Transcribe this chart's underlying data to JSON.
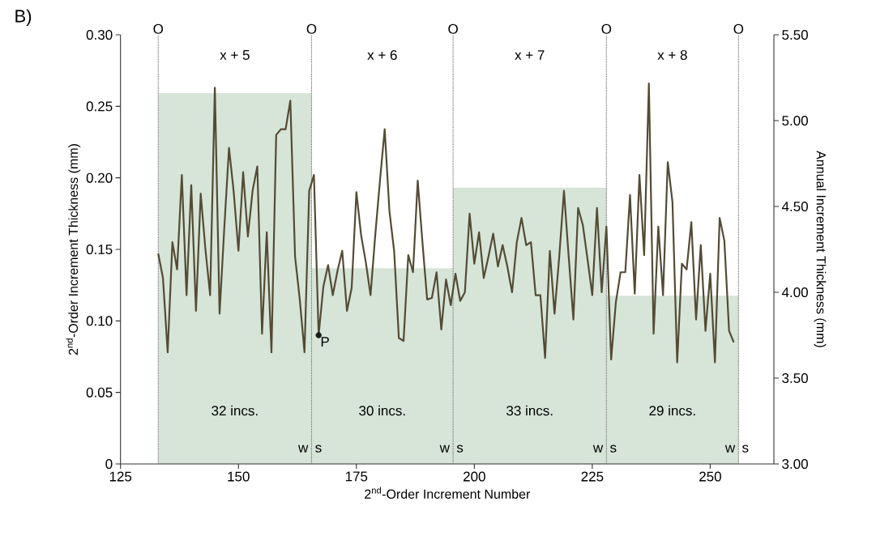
{
  "chart_data": {
    "type": "line",
    "xlabel": "2$^{nd}$-Order Increment Number",
    "ylabel": "2$^{nd}$-Order Increment Thickness (mm)",
    "y2label": "Annual Increment Thickness (mm)",
    "xlim": [
      125,
      263.5
    ],
    "xticks": [
      125,
      150,
      175,
      200,
      225,
      250
    ],
    "ylim": [
      0,
      0.3
    ],
    "yticks": [
      {
        "value": 0,
        "label": "0"
      },
      {
        "value": 0.05,
        "label": "0.05"
      },
      {
        "value": 0.1,
        "label": "0.10"
      },
      {
        "value": 0.15,
        "label": "0.15"
      },
      {
        "value": 0.2,
        "label": "0.20"
      },
      {
        "value": 0.25,
        "label": "0.25"
      },
      {
        "value": 0.3,
        "label": "0.30"
      }
    ],
    "y2lim": [
      3,
      5.5
    ],
    "y2ticks": [
      {
        "value": 3,
        "label": "3.00"
      },
      {
        "value": 3.5,
        "label": "3.50"
      },
      {
        "value": 4,
        "label": "4.00"
      },
      {
        "value": 4.5,
        "label": "4.50"
      },
      {
        "value": 5,
        "label": "5.00"
      },
      {
        "value": 5.5,
        "label": "5.50"
      }
    ],
    "series": [
      {
        "type": "bar",
        "axis": "y2",
        "color": "#d6e5d8",
        "x": [
          149.25,
          180.5,
          211.75,
          242
        ],
        "values": [
          5.16,
          4.14,
          4.61,
          3.98
        ]
      },
      {
        "color": "#544b35",
        "x": [
          133,
          134,
          135,
          136,
          137,
          138,
          139,
          140,
          141,
          142,
          143,
          144,
          145,
          146,
          147,
          148,
          149,
          150,
          151,
          152,
          153,
          154,
          155,
          156,
          157,
          158,
          159,
          160,
          161,
          162,
          163,
          164,
          165,
          166,
          167,
          168,
          169,
          170,
          171,
          172,
          173,
          174,
          175,
          176,
          177,
          178,
          179,
          180,
          181,
          182,
          183,
          184,
          185,
          186,
          187,
          188,
          189,
          190,
          191,
          192,
          193,
          194,
          195,
          196,
          197,
          198,
          199,
          200,
          201,
          202,
          203,
          204,
          205,
          206,
          207,
          208,
          209,
          210,
          211,
          212,
          213,
          214,
          215,
          216,
          217,
          218,
          219,
          220,
          221,
          222,
          223,
          224,
          225,
          226,
          227,
          228,
          229,
          230,
          231,
          232,
          233,
          234,
          235,
          236,
          237,
          238,
          239,
          240,
          241,
          242,
          243,
          244,
          245,
          246,
          247,
          248,
          249,
          250,
          251,
          252,
          253,
          254,
          255
        ],
        "values": [
          0.147,
          0.13,
          0.078,
          0.155,
          0.136,
          0.202,
          0.118,
          0.195,
          0.107,
          0.189,
          0.15,
          0.118,
          0.263,
          0.105,
          0.165,
          0.221,
          0.19,
          0.149,
          0.204,
          0.159,
          0.191,
          0.208,
          0.091,
          0.162,
          0.078,
          0.23,
          0.234,
          0.234,
          0.254,
          0.145,
          0.115,
          0.078,
          0.191,
          0.202,
          0.09,
          0.124,
          0.139,
          0.118,
          0.135,
          0.149,
          0.107,
          0.123,
          0.19,
          0.16,
          0.141,
          0.118,
          0.16,
          0.198,
          0.234,
          0.177,
          0.149,
          0.088,
          0.086,
          0.146,
          0.134,
          0.198,
          0.155,
          0.115,
          0.116,
          0.134,
          0.094,
          0.129,
          0.111,
          0.133,
          0.114,
          0.12,
          0.175,
          0.14,
          0.162,
          0.13,
          0.145,
          0.161,
          0.138,
          0.153,
          0.138,
          0.12,
          0.155,
          0.172,
          0.153,
          0.155,
          0.118,
          0.118,
          0.074,
          0.149,
          0.105,
          0.145,
          0.191,
          0.145,
          0.101,
          0.179,
          0.167,
          0.143,
          0.118,
          0.179,
          0.12,
          0.166,
          0.073,
          0.113,
          0.134,
          0.134,
          0.188,
          0.119,
          0.202,
          0.146,
          0.266,
          0.091,
          0.166,
          0.118,
          0.211,
          0.183,
          0.071,
          0.14,
          0.136,
          0.169,
          0.101,
          0.153,
          0.093,
          0.133,
          0.071,
          0.172,
          0.156,
          0.093,
          0.085
        ]
      },
      {
        "type": "scatter",
        "color": "#1a1a1a",
        "marker": "circle",
        "x": [
          167
        ],
        "values": [
          0.09
        ]
      }
    ],
    "ref_lines": [
      {
        "axis": "x",
        "value": 133,
        "label": "O",
        "color": "#666666",
        "line_style": "dotted"
      },
      {
        "axis": "x",
        "value": 165.5,
        "label": "O",
        "color": "#666666",
        "line_style": "dotted"
      },
      {
        "axis": "x",
        "value": 195.5,
        "label": "O",
        "color": "#666666",
        "line_style": "dotted"
      },
      {
        "axis": "x",
        "value": 228,
        "label": "O",
        "color": "#666666",
        "line_style": "dotted"
      },
      {
        "axis": "x",
        "value": 256,
        "label": "O",
        "color": "#666666",
        "line_style": "dotted"
      }
    ],
    "annotations": [
      "B)",
      "x + 5",
      "x + 6",
      "x + 7",
      "x + 8",
      "32 incs.",
      "30 incs.",
      "33 incs.",
      "29 incs.",
      "w",
      "s",
      "w",
      "s",
      "w",
      "s",
      "w",
      "s",
      {
        "text": "P",
        "x": 167,
        "y": 0.09
      }
    ],
    "grid": false
  }
}
